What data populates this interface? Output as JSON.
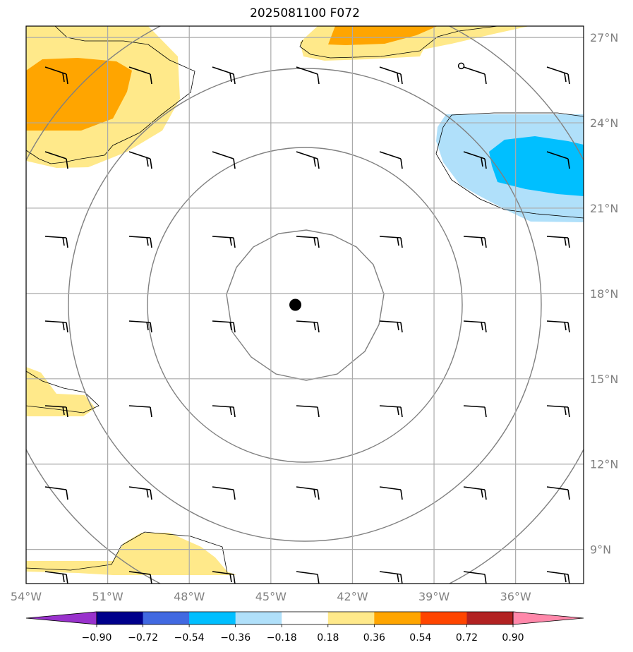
{
  "title": "2025081100 F072",
  "map": {
    "lon_range": [
      -54,
      -33.5
    ],
    "lat_range": [
      7.8,
      27.4
    ],
    "lon_ticks": [
      {
        "value": -54,
        "label": "54°W"
      },
      {
        "value": -51,
        "label": "51°W"
      },
      {
        "value": -48,
        "label": "48°W"
      },
      {
        "value": -45,
        "label": "45°W"
      },
      {
        "value": -42,
        "label": "42°W"
      },
      {
        "value": -39,
        "label": "39°W"
      },
      {
        "value": -36,
        "label": "36°W"
      }
    ],
    "lat_ticks": [
      {
        "value": 27,
        "label": "27°N"
      },
      {
        "value": 24,
        "label": "24°N"
      },
      {
        "value": 21,
        "label": "21°N"
      },
      {
        "value": 18,
        "label": "18°N"
      },
      {
        "value": 15,
        "label": "15°N"
      },
      {
        "value": 12,
        "label": "12°N"
      },
      {
        "value": 9,
        "label": "9°N"
      }
    ],
    "grid": true,
    "center": {
      "lon": -44.1,
      "lat": 17.6
    },
    "open_marker": {
      "lon": -38,
      "lat": 26
    }
  },
  "colorbar": {
    "ticks": [
      "−0.90",
      "−0.72",
      "−0.54",
      "−0.36",
      "−0.18",
      "0.18",
      "0.36",
      "0.54",
      "0.72",
      "0.90"
    ],
    "colors": [
      "#9932cc",
      "#00008b",
      "#4169e1",
      "#00bfff",
      "#b0e0fa",
      "#ffffff",
      "#ffe98a",
      "#ffa500",
      "#ff4500",
      "#b22222",
      "#ff88aa"
    ],
    "extend": "both"
  }
}
